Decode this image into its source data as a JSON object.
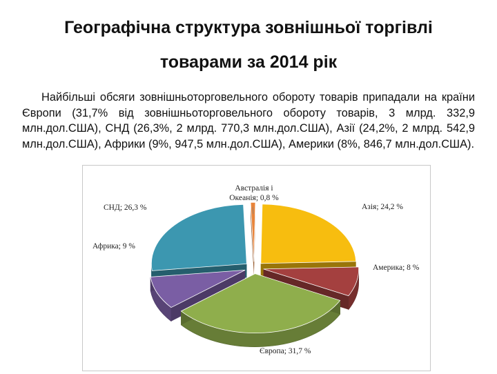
{
  "slide": {
    "title_line1": "Географічна структура зовнішньої торгівлі",
    "title_line2": "товарами за 2014 рік",
    "body": "Найбільші обсяги зовнішньоторговельного обороту товарів припадали на країни Європи (31,7% від зовнішньоторговельного обороту товарів, 3 млрд. 332,9 млн.дол.США), СНД (26,3%, 2 млрд. 770,3 млн.дол.США), Азії (24,2%, 2 млрд. 542,9 млн.дол.США), Африки (9%, 947,5 млн.дол.США), Америки (8%, 846,7 млн.дол.США)."
  },
  "chart_data": {
    "type": "pie",
    "style": "3d-exploded",
    "title": "",
    "slices": [
      {
        "label": "Австралія і Океанія",
        "value": 0.8,
        "display": "Австралія і Океанія; 0,8 %",
        "color": "#e8843a"
      },
      {
        "label": "Азія",
        "value": 24.2,
        "display": "Азія; 24,2 %",
        "color": "#f7bd0f"
      },
      {
        "label": "Америка",
        "value": 8,
        "display": "Америка; 8 %",
        "color": "#a4403f"
      },
      {
        "label": "Європа",
        "value": 31.7,
        "display": "Європа; 31,7 %",
        "color": "#8fae4c"
      },
      {
        "label": "Африка",
        "value": 9,
        "display": "Африка; 9 %",
        "color": "#7a5ea4"
      },
      {
        "label": "СНД",
        "value": 26.3,
        "display": "СНД; 26,3 %",
        "color": "#3c97b0"
      }
    ]
  }
}
